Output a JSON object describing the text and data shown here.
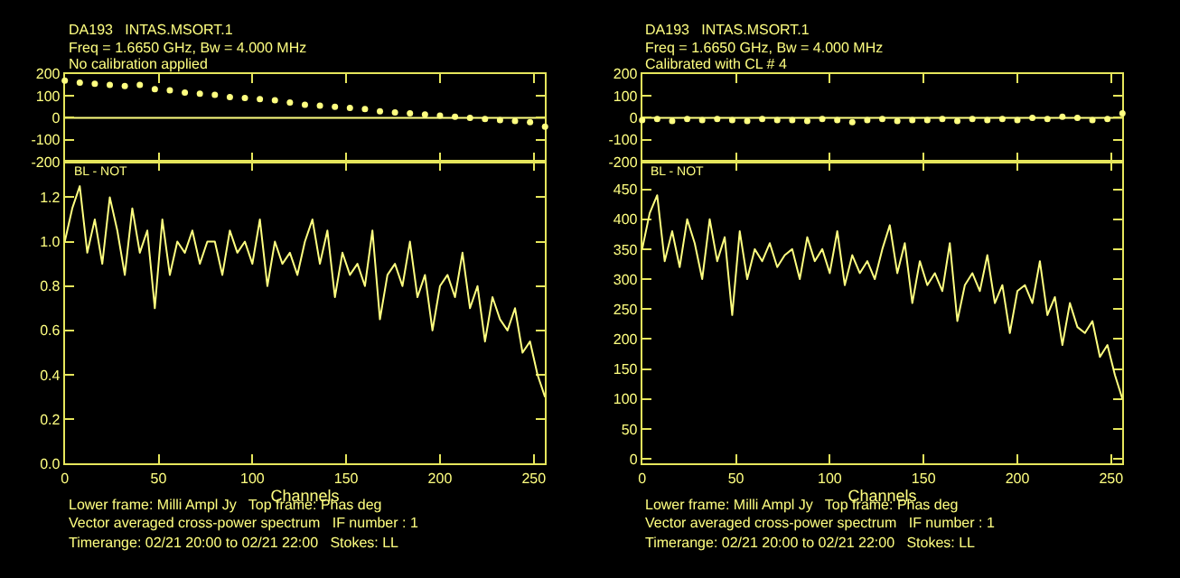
{
  "chart_data": [
    {
      "type": "scatter",
      "title": "DA193   INTAS.MSORT.1",
      "subtitle": "Freq = 1.6650 GHz, Bw = 4.000 MHz",
      "annotations": [
        "No calibration applied"
      ],
      "marker": "circle",
      "grid": false,
      "tick_labels": "y",
      "xlim": [
        0,
        256
      ],
      "xticks": [
        {
          "value": 0,
          "label": null
        },
        {
          "value": 50,
          "label": null
        },
        {
          "value": 100,
          "label": null
        },
        {
          "value": 150,
          "label": null
        },
        {
          "value": 200,
          "label": null
        },
        {
          "value": 250,
          "label": null
        }
      ],
      "ylim": [
        -200,
        200
      ],
      "yticks": [
        -200,
        -100,
        0,
        100,
        200
      ],
      "ref_lines": [
        {
          "axis": "y",
          "value": 0,
          "color": "#ffff80"
        }
      ],
      "x": [
        0,
        8,
        16,
        24,
        32,
        40,
        48,
        56,
        64,
        72,
        80,
        88,
        96,
        104,
        112,
        120,
        128,
        136,
        144,
        152,
        160,
        168,
        176,
        184,
        192,
        200,
        208,
        216,
        224,
        232,
        240,
        248,
        256
      ],
      "series": [
        {
          "color": "#ffff80",
          "values": [
            170,
            160,
            155,
            150,
            145,
            150,
            130,
            125,
            115,
            110,
            105,
            95,
            90,
            85,
            80,
            70,
            60,
            55,
            50,
            45,
            40,
            30,
            25,
            20,
            15,
            10,
            5,
            0,
            -5,
            -10,
            -15,
            -20,
            -40
          ]
        }
      ]
    },
    {
      "type": "scatter",
      "title": "DA193   INTAS.MSORT.1",
      "subtitle": "Freq = 1.6650 GHz, Bw = 4.000 MHz",
      "annotations": [
        "Calibrated with CL # 4"
      ],
      "marker": "circle",
      "grid": false,
      "tick_labels": "y",
      "xlim": [
        0,
        256
      ],
      "xticks": [
        {
          "value": 0,
          "label": null
        },
        {
          "value": 50,
          "label": null
        },
        {
          "value": 100,
          "label": null
        },
        {
          "value": 150,
          "label": null
        },
        {
          "value": 200,
          "label": null
        },
        {
          "value": 250,
          "label": null
        }
      ],
      "ylim": [
        -200,
        200
      ],
      "yticks": [
        -200,
        -100,
        0,
        100,
        200
      ],
      "ref_lines": [
        {
          "axis": "y",
          "value": 0,
          "color": "#ffff80"
        }
      ],
      "x": [
        0,
        8,
        16,
        24,
        32,
        40,
        48,
        56,
        64,
        72,
        80,
        88,
        96,
        104,
        112,
        120,
        128,
        136,
        144,
        152,
        160,
        168,
        176,
        184,
        192,
        200,
        208,
        216,
        224,
        232,
        240,
        248,
        256
      ],
      "series": [
        {
          "color": "#ffff80",
          "values": [
            -10,
            -5,
            -15,
            -5,
            -10,
            -5,
            -10,
            -15,
            -5,
            -10,
            -10,
            -15,
            -5,
            -10,
            -20,
            -10,
            -5,
            -15,
            -10,
            -10,
            -5,
            -15,
            -5,
            -10,
            -5,
            -10,
            0,
            -5,
            5,
            0,
            -10,
            -5,
            20
          ]
        }
      ]
    },
    {
      "type": "line",
      "xlabel": "Channels",
      "annotations": [
        "BL - NOT",
        "Lower frame: Milli Ampl Jy   Top frame: Phas deg",
        "Vector averaged cross-power spectrum   IF number : 1",
        "Timerange: 02/21 20:00 to 02/21 22:00   Stokes: LL"
      ],
      "grid": false,
      "xlim": [
        0,
        256
      ],
      "xticks": [
        0,
        50,
        100,
        150,
        200,
        250
      ],
      "ylim": [
        0,
        1.36
      ],
      "yticks": [
        {
          "value": 0,
          "label": "0.0"
        },
        {
          "value": 0.2,
          "label": "0.2"
        },
        {
          "value": 0.4,
          "label": "0.4"
        },
        {
          "value": 0.6,
          "label": "0.6"
        },
        {
          "value": 0.8,
          "label": "0.8"
        },
        {
          "value": 1,
          "label": "1.0"
        },
        {
          "value": 1.2,
          "label": "1.2"
        }
      ],
      "x": [
        0,
        4,
        8,
        12,
        16,
        20,
        24,
        28,
        32,
        36,
        40,
        44,
        48,
        52,
        56,
        60,
        64,
        68,
        72,
        76,
        80,
        84,
        88,
        92,
        96,
        100,
        104,
        108,
        112,
        116,
        120,
        124,
        128,
        132,
        136,
        140,
        144,
        148,
        152,
        156,
        160,
        164,
        168,
        172,
        176,
        180,
        184,
        188,
        192,
        196,
        200,
        204,
        208,
        212,
        216,
        220,
        224,
        228,
        232,
        236,
        240,
        244,
        248,
        252,
        256
      ],
      "series": [
        {
          "color": "#ffff80",
          "values": [
            1.0,
            1.15,
            1.25,
            0.95,
            1.1,
            0.9,
            1.2,
            1.05,
            0.85,
            1.15,
            0.95,
            1.05,
            0.7,
            1.1,
            0.85,
            1.0,
            0.95,
            1.05,
            0.9,
            1.0,
            1.0,
            0.85,
            1.05,
            0.95,
            1.0,
            0.9,
            1.1,
            0.8,
            1.0,
            0.9,
            0.95,
            0.85,
            1.0,
            1.1,
            0.9,
            1.05,
            0.75,
            0.95,
            0.85,
            0.9,
            0.8,
            1.05,
            0.65,
            0.85,
            0.9,
            0.8,
            1.0,
            0.75,
            0.85,
            0.6,
            0.8,
            0.85,
            0.75,
            0.95,
            0.7,
            0.8,
            0.55,
            0.75,
            0.65,
            0.6,
            0.7,
            0.5,
            0.55,
            0.4,
            0.3
          ]
        }
      ]
    },
    {
      "type": "line",
      "xlabel": "Channels",
      "annotations": [
        "BL - NOT",
        "Lower frame: Milli Ampl Jy   Top frame: Phas deg",
        "Vector averaged cross-power spectrum   IF number : 1",
        "Timerange: 02/21 20:00 to 02/21 22:00   Stokes: LL"
      ],
      "grid": false,
      "xlim": [
        0,
        256
      ],
      "xticks": [
        0,
        50,
        100,
        150,
        200,
        250
      ],
      "ylim": [
        -8,
        496
      ],
      "yticks": [
        0,
        50,
        100,
        150,
        200,
        250,
        300,
        350,
        400,
        450
      ],
      "x": [
        0,
        4,
        8,
        12,
        16,
        20,
        24,
        28,
        32,
        36,
        40,
        44,
        48,
        52,
        56,
        60,
        64,
        68,
        72,
        76,
        80,
        84,
        88,
        92,
        96,
        100,
        104,
        108,
        112,
        116,
        120,
        124,
        128,
        132,
        136,
        140,
        144,
        148,
        152,
        156,
        160,
        164,
        168,
        172,
        176,
        180,
        184,
        188,
        192,
        196,
        200,
        204,
        208,
        212,
        216,
        220,
        224,
        228,
        232,
        236,
        240,
        244,
        248,
        252,
        256
      ],
      "series": [
        {
          "color": "#ffff80",
          "values": [
            350,
            410,
            440,
            330,
            380,
            320,
            400,
            360,
            300,
            400,
            330,
            370,
            240,
            380,
            300,
            350,
            330,
            360,
            320,
            340,
            350,
            300,
            370,
            330,
            350,
            310,
            380,
            290,
            340,
            310,
            330,
            300,
            350,
            390,
            310,
            360,
            260,
            330,
            290,
            310,
            280,
            360,
            230,
            290,
            310,
            280,
            340,
            260,
            290,
            210,
            280,
            290,
            260,
            330,
            240,
            270,
            190,
            260,
            220,
            210,
            230,
            170,
            190,
            140,
            100
          ]
        }
      ]
    }
  ]
}
